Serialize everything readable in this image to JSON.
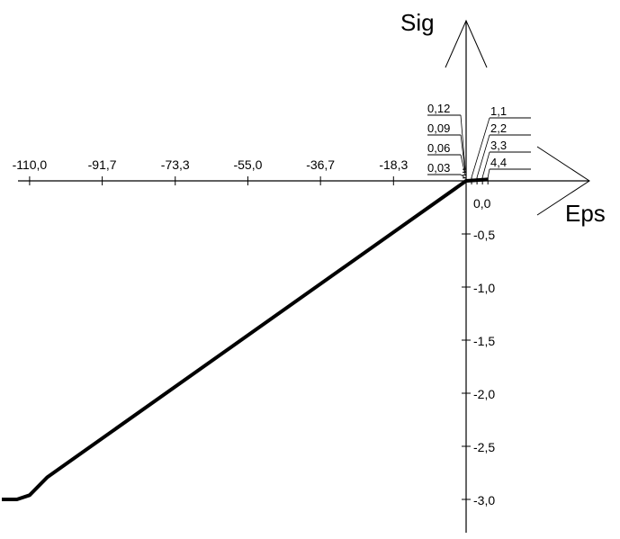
{
  "chart_data": {
    "type": "line",
    "title": "",
    "xlabel": "Eps",
    "ylabel": "Sig",
    "grid": false,
    "negative_x_ticks": [
      {
        "value": -110.0,
        "label": "-110,0"
      },
      {
        "value": -91.7,
        "label": "-91,7"
      },
      {
        "value": -73.3,
        "label": "-73,3"
      },
      {
        "value": -55.0,
        "label": "-55,0"
      },
      {
        "value": -36.7,
        "label": "-36,7"
      },
      {
        "value": -18.3,
        "label": "-18,3"
      }
    ],
    "y_ticks": [
      {
        "value": 0.0,
        "label": "0,0"
      },
      {
        "value": -0.5,
        "label": "-0,5"
      },
      {
        "value": -1.0,
        "label": "-1,0"
      },
      {
        "value": -1.5,
        "label": "-1,5"
      },
      {
        "value": -2.0,
        "label": "-2,0"
      },
      {
        "value": -2.5,
        "label": "-2,5"
      },
      {
        "value": -3.0,
        "label": "-3,0"
      }
    ],
    "positive_y_ticks": [
      {
        "value": 0.03,
        "label": "0,03"
      },
      {
        "value": 0.06,
        "label": "0,06"
      },
      {
        "value": 0.09,
        "label": "0,09"
      },
      {
        "value": 0.12,
        "label": "0,12"
      }
    ],
    "positive_x_ticks": [
      {
        "value": 1.1,
        "label": "1,1"
      },
      {
        "value": 2.2,
        "label": "2,2"
      },
      {
        "value": 3.3,
        "label": "3,3"
      },
      {
        "value": 4.4,
        "label": "4,4"
      }
    ],
    "series": [
      {
        "x": [
          -117.0,
          -113.2,
          -110.0,
          -105.5,
          0.0,
          4.4
        ],
        "y": [
          -3.0,
          -3.0,
          -2.96,
          -2.79,
          0.0,
          0.015
        ]
      }
    ]
  }
}
